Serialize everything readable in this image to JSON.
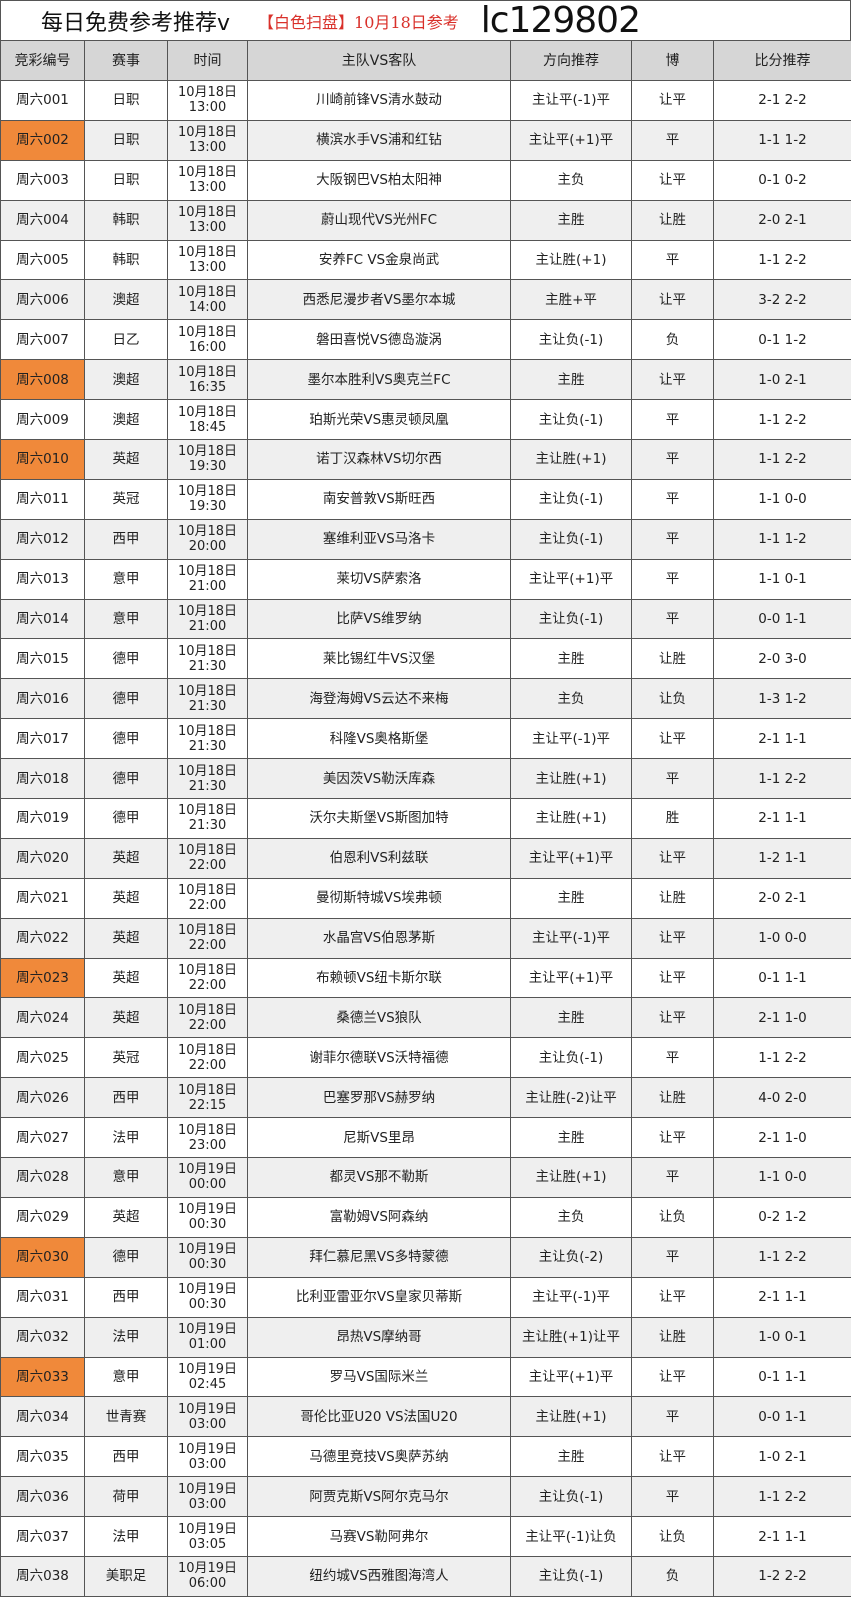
{
  "header": {
    "title": "每日免费参考推荐v",
    "subtitle": "【白色扫盘】10月18日参考",
    "code": "lc129802"
  },
  "highlight_color": "#f0893a",
  "columns": [
    "竞彩编号",
    "赛事",
    "时间",
    "主队VS客队",
    "方向推荐",
    "博",
    "比分推荐"
  ],
  "rows": [
    {
      "id": "周六001",
      "league": "日职",
      "date": "10月18日",
      "time": "13:00",
      "match": "川崎前锋VS清水鼓动",
      "pick": "主让平(-1)平",
      "bo": "让平",
      "score": "2-1 2-2",
      "highlight": false
    },
    {
      "id": "周六002",
      "league": "日职",
      "date": "10月18日",
      "time": "13:00",
      "match": "横滨水手VS浦和红钻",
      "pick": "主让平(+1)平",
      "bo": "平",
      "score": "1-1 1-2",
      "highlight": true
    },
    {
      "id": "周六003",
      "league": "日职",
      "date": "10月18日",
      "time": "13:00",
      "match": "大阪钢巴VS柏太阳神",
      "pick": "主负",
      "bo": "让平",
      "score": "0-1 0-2",
      "highlight": false
    },
    {
      "id": "周六004",
      "league": "韩职",
      "date": "10月18日",
      "time": "13:00",
      "match": "蔚山现代VS光州FC",
      "pick": "主胜",
      "bo": "让胜",
      "score": "2-0 2-1",
      "highlight": false
    },
    {
      "id": "周六005",
      "league": "韩职",
      "date": "10月18日",
      "time": "13:00",
      "match": "安养FC VS金泉尚武",
      "pick": "主让胜(+1)",
      "bo": "平",
      "score": "1-1 2-2",
      "highlight": false
    },
    {
      "id": "周六006",
      "league": "澳超",
      "date": "10月18日",
      "time": "14:00",
      "match": "西悉尼漫步者VS墨尔本城",
      "pick": "主胜+平",
      "bo": "让平",
      "score": "3-2 2-2",
      "highlight": false
    },
    {
      "id": "周六007",
      "league": "日乙",
      "date": "10月18日",
      "time": "16:00",
      "match": "磐田喜悦VS德岛漩涡",
      "pick": "主让负(-1)",
      "bo": "负",
      "score": "0-1 1-2",
      "highlight": false
    },
    {
      "id": "周六008",
      "league": "澳超",
      "date": "10月18日",
      "time": "16:35",
      "match": "墨尔本胜利VS奥克兰FC",
      "pick": "主胜",
      "bo": "让平",
      "score": "1-0 2-1",
      "highlight": true
    },
    {
      "id": "周六009",
      "league": "澳超",
      "date": "10月18日",
      "time": "18:45",
      "match": "珀斯光荣VS惠灵顿凤凰",
      "pick": "主让负(-1)",
      "bo": "平",
      "score": "1-1 2-2",
      "highlight": false
    },
    {
      "id": "周六010",
      "league": "英超",
      "date": "10月18日",
      "time": "19:30",
      "match": "诺丁汉森林VS切尔西",
      "pick": "主让胜(+1)",
      "bo": "平",
      "score": "1-1 2-2",
      "highlight": true
    },
    {
      "id": "周六011",
      "league": "英冠",
      "date": "10月18日",
      "time": "19:30",
      "match": "南安普敦VS斯旺西",
      "pick": "主让负(-1)",
      "bo": "平",
      "score": "1-1 0-0",
      "highlight": false
    },
    {
      "id": "周六012",
      "league": "西甲",
      "date": "10月18日",
      "time": "20:00",
      "match": "塞维利亚VS马洛卡",
      "pick": "主让负(-1)",
      "bo": "平",
      "score": "1-1 1-2",
      "highlight": false
    },
    {
      "id": "周六013",
      "league": "意甲",
      "date": "10月18日",
      "time": "21:00",
      "match": "莱切VS萨索洛",
      "pick": "主让平(+1)平",
      "bo": "平",
      "score": "1-1 0-1",
      "highlight": false
    },
    {
      "id": "周六014",
      "league": "意甲",
      "date": "10月18日",
      "time": "21:00",
      "match": "比萨VS维罗纳",
      "pick": "主让负(-1)",
      "bo": "平",
      "score": "0-0 1-1",
      "highlight": false
    },
    {
      "id": "周六015",
      "league": "德甲",
      "date": "10月18日",
      "time": "21:30",
      "match": "莱比锡红牛VS汉堡",
      "pick": "主胜",
      "bo": "让胜",
      "score": "2-0 3-0",
      "highlight": false
    },
    {
      "id": "周六016",
      "league": "德甲",
      "date": "10月18日",
      "time": "21:30",
      "match": "海登海姆VS云达不来梅",
      "pick": "主负",
      "bo": "让负",
      "score": "1-3 1-2",
      "highlight": false
    },
    {
      "id": "周六017",
      "league": "德甲",
      "date": "10月18日",
      "time": "21:30",
      "match": "科隆VS奥格斯堡",
      "pick": "主让平(-1)平",
      "bo": "让平",
      "score": "2-1 1-1",
      "highlight": false
    },
    {
      "id": "周六018",
      "league": "德甲",
      "date": "10月18日",
      "time": "21:30",
      "match": "美因茨VS勒沃库森",
      "pick": "主让胜(+1)",
      "bo": "平",
      "score": "1-1 2-2",
      "highlight": false
    },
    {
      "id": "周六019",
      "league": "德甲",
      "date": "10月18日",
      "time": "21:30",
      "match": "沃尔夫斯堡VS斯图加特",
      "pick": "主让胜(+1)",
      "bo": "胜",
      "score": "2-1 1-1",
      "highlight": false
    },
    {
      "id": "周六020",
      "league": "英超",
      "date": "10月18日",
      "time": "22:00",
      "match": "伯恩利VS利兹联",
      "pick": "主让平(+1)平",
      "bo": "让平",
      "score": "1-2 1-1",
      "highlight": false
    },
    {
      "id": "周六021",
      "league": "英超",
      "date": "10月18日",
      "time": "22:00",
      "match": "曼彻斯特城VS埃弗顿",
      "pick": "主胜",
      "bo": "让胜",
      "score": "2-0 2-1",
      "highlight": false
    },
    {
      "id": "周六022",
      "league": "英超",
      "date": "10月18日",
      "time": "22:00",
      "match": "水晶宫VS伯恩茅斯",
      "pick": "主让平(-1)平",
      "bo": "让平",
      "score": "1-0 0-0",
      "highlight": false
    },
    {
      "id": "周六023",
      "league": "英超",
      "date": "10月18日",
      "time": "22:00",
      "match": "布赖顿VS纽卡斯尔联",
      "pick": "主让平(+1)平",
      "bo": "让平",
      "score": "0-1 1-1",
      "highlight": true
    },
    {
      "id": "周六024",
      "league": "英超",
      "date": "10月18日",
      "time": "22:00",
      "match": "桑德兰VS狼队",
      "pick": "主胜",
      "bo": "让平",
      "score": "2-1 1-0",
      "highlight": false
    },
    {
      "id": "周六025",
      "league": "英冠",
      "date": "10月18日",
      "time": "22:00",
      "match": "谢菲尔德联VS沃特福德",
      "pick": "主让负(-1)",
      "bo": "平",
      "score": "1-1 2-2",
      "highlight": false
    },
    {
      "id": "周六026",
      "league": "西甲",
      "date": "10月18日",
      "time": "22:15",
      "match": "巴塞罗那VS赫罗纳",
      "pick": "主让胜(-2)让平",
      "bo": "让胜",
      "score": "4-0 2-0",
      "highlight": false
    },
    {
      "id": "周六027",
      "league": "法甲",
      "date": "10月18日",
      "time": "23:00",
      "match": "尼斯VS里昂",
      "pick": "主胜",
      "bo": "让平",
      "score": "2-1 1-0",
      "highlight": false
    },
    {
      "id": "周六028",
      "league": "意甲",
      "date": "10月19日",
      "time": "00:00",
      "match": "都灵VS那不勒斯",
      "pick": "主让胜(+1)",
      "bo": "平",
      "score": "1-1 0-0",
      "highlight": false
    },
    {
      "id": "周六029",
      "league": "英超",
      "date": "10月19日",
      "time": "00:30",
      "match": "富勒姆VS阿森纳",
      "pick": "主负",
      "bo": "让负",
      "score": "0-2 1-2",
      "highlight": false
    },
    {
      "id": "周六030",
      "league": "德甲",
      "date": "10月19日",
      "time": "00:30",
      "match": "拜仁慕尼黑VS多特蒙德",
      "pick": "主让负(-2)",
      "bo": "平",
      "score": "1-1 2-2",
      "highlight": true
    },
    {
      "id": "周六031",
      "league": "西甲",
      "date": "10月19日",
      "time": "00:30",
      "match": "比利亚雷亚尔VS皇家贝蒂斯",
      "pick": "主让平(-1)平",
      "bo": "让平",
      "score": "2-1 1-1",
      "highlight": false
    },
    {
      "id": "周六032",
      "league": "法甲",
      "date": "10月19日",
      "time": "01:00",
      "match": "昂热VS摩纳哥",
      "pick": "主让胜(+1)让平",
      "bo": "让胜",
      "score": "1-0 0-1",
      "highlight": false
    },
    {
      "id": "周六033",
      "league": "意甲",
      "date": "10月19日",
      "time": "02:45",
      "match": "罗马VS国际米兰",
      "pick": "主让平(+1)平",
      "bo": "让平",
      "score": "0-1 1-1",
      "highlight": true
    },
    {
      "id": "周六034",
      "league": "世青赛",
      "date": "10月19日",
      "time": "03:00",
      "match": "哥伦比亚U20 VS法国U20",
      "pick": "主让胜(+1)",
      "bo": "平",
      "score": "0-0 1-1",
      "highlight": false
    },
    {
      "id": "周六035",
      "league": "西甲",
      "date": "10月19日",
      "time": "03:00",
      "match": "马德里竞技VS奥萨苏纳",
      "pick": "主胜",
      "bo": "让平",
      "score": "1-0 2-1",
      "highlight": false
    },
    {
      "id": "周六036",
      "league": "荷甲",
      "date": "10月19日",
      "time": "03:00",
      "match": "阿贾克斯VS阿尔克马尔",
      "pick": "主让负(-1)",
      "bo": "平",
      "score": "1-1 2-2",
      "highlight": false
    },
    {
      "id": "周六037",
      "league": "法甲",
      "date": "10月19日",
      "time": "03:05",
      "match": "马赛VS勒阿弗尔",
      "pick": "主让平(-1)让负",
      "bo": "让负",
      "score": "2-1 1-1",
      "highlight": false
    },
    {
      "id": "周六038",
      "league": "美职足",
      "date": "10月19日",
      "time": "06:00",
      "match": "纽约城VS西雅图海湾人",
      "pick": "主让负(-1)",
      "bo": "负",
      "score": "1-2 2-2",
      "highlight": false
    }
  ]
}
